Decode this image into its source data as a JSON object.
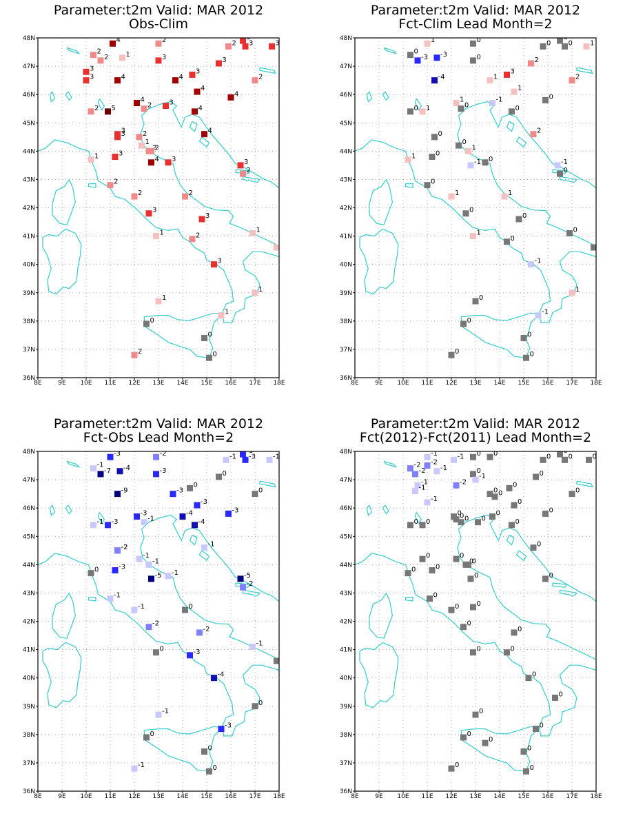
{
  "figure": {
    "panels": [
      {
        "title_line1": "Parameter:t2m Valid: MAR 2012",
        "title_line2": "Obs-Clim",
        "stations": [
          [
            11.1,
            47.8,
            4
          ],
          [
            13.0,
            47.8,
            2
          ],
          [
            15.9,
            47.7,
            2
          ],
          [
            16.5,
            47.9,
            3
          ],
          [
            16.6,
            47.7,
            3
          ],
          [
            17.7,
            47.7,
            3
          ],
          [
            10.3,
            47.4,
            2
          ],
          [
            10.6,
            47.2,
            2
          ],
          [
            11.5,
            47.3,
            1
          ],
          [
            13.0,
            47.2,
            3
          ],
          [
            15.5,
            47.1,
            3
          ],
          [
            10.0,
            46.8,
            3
          ],
          [
            10.0,
            46.5,
            3
          ],
          [
            11.3,
            46.5,
            4
          ],
          [
            13.7,
            46.5,
            4
          ],
          [
            14.4,
            46.7,
            3
          ],
          [
            14.6,
            46.1,
            4
          ],
          [
            17.0,
            46.5,
            2
          ],
          [
            16.0,
            45.9,
            4
          ],
          [
            12.1,
            45.7,
            4
          ],
          [
            12.4,
            45.5,
            2
          ],
          [
            13.3,
            45.6,
            3
          ],
          [
            14.5,
            45.4,
            4
          ],
          [
            10.2,
            45.4,
            2
          ],
          [
            10.9,
            45.4,
            5
          ],
          [
            11.3,
            44.5,
            3
          ],
          [
            11.3,
            44.6,
            3
          ],
          [
            12.2,
            44.5,
            2
          ],
          [
            12.3,
            44.2,
            1
          ],
          [
            12.6,
            44.0,
            2
          ],
          [
            12.7,
            44.0,
            2
          ],
          [
            14.9,
            44.6,
            4
          ],
          [
            10.2,
            43.7,
            1
          ],
          [
            11.2,
            43.8,
            3
          ],
          [
            12.7,
            43.6,
            4
          ],
          [
            13.4,
            43.6,
            3
          ],
          [
            16.4,
            43.5,
            3
          ],
          [
            16.5,
            43.2,
            2
          ],
          [
            11.0,
            42.8,
            2
          ],
          [
            12.0,
            42.4,
            2
          ],
          [
            14.1,
            42.4,
            2
          ],
          [
            12.6,
            41.8,
            3
          ],
          [
            14.8,
            41.6,
            3
          ],
          [
            12.9,
            41.0,
            1
          ],
          [
            14.4,
            40.9,
            2
          ],
          [
            16.9,
            41.1,
            1
          ],
          [
            17.9,
            40.6,
            1
          ],
          [
            15.3,
            40.0,
            3
          ],
          [
            17.0,
            39.0,
            1
          ],
          [
            13.0,
            38.7,
            1
          ],
          [
            15.6,
            38.2,
            1
          ],
          [
            12.5,
            37.9,
            0
          ],
          [
            14.9,
            37.4,
            0
          ],
          [
            15.1,
            36.7,
            0
          ],
          [
            12.0,
            36.8,
            2
          ]
        ]
      },
      {
        "title_line1": "Parameter:t2m Valid: MAR 2012",
        "title_line2": "Fct-Clim Lead Month=2",
        "stations": [
          [
            11.0,
            47.8,
            1
          ],
          [
            12.9,
            47.8,
            0
          ],
          [
            16.5,
            47.9,
            0
          ],
          [
            16.7,
            47.7,
            0
          ],
          [
            15.8,
            47.7,
            0
          ],
          [
            17.6,
            47.7,
            1
          ],
          [
            10.3,
            47.4,
            0
          ],
          [
            10.6,
            47.2,
            -3
          ],
          [
            11.4,
            47.3,
            -3
          ],
          [
            12.9,
            47.2,
            0
          ],
          [
            15.3,
            47.1,
            2
          ],
          [
            11.3,
            46.5,
            -4
          ],
          [
            13.6,
            46.5,
            1
          ],
          [
            14.3,
            46.7,
            3
          ],
          [
            14.6,
            46.1,
            1
          ],
          [
            17.0,
            46.5,
            2
          ],
          [
            15.9,
            45.8,
            0
          ],
          [
            10.3,
            45.4,
            0
          ],
          [
            10.8,
            45.4,
            1
          ],
          [
            12.2,
            45.7,
            1
          ],
          [
            12.4,
            45.5,
            0
          ],
          [
            13.7,
            45.7,
            -1
          ],
          [
            14.5,
            45.4,
            0
          ],
          [
            15.4,
            44.6,
            2
          ],
          [
            11.3,
            44.5,
            0
          ],
          [
            12.3,
            44.2,
            0
          ],
          [
            12.7,
            44.0,
            1
          ],
          [
            11.2,
            43.8,
            0
          ],
          [
            10.2,
            43.7,
            1
          ],
          [
            12.8,
            43.5,
            -1
          ],
          [
            13.4,
            43.6,
            0
          ],
          [
            16.4,
            43.5,
            -1
          ],
          [
            16.5,
            43.2,
            0
          ],
          [
            11.0,
            42.8,
            0
          ],
          [
            12.0,
            42.4,
            1
          ],
          [
            14.2,
            42.4,
            1
          ],
          [
            12.6,
            41.8,
            0
          ],
          [
            14.8,
            41.6,
            0
          ],
          [
            12.9,
            41.0,
            1
          ],
          [
            14.3,
            40.8,
            0
          ],
          [
            16.9,
            41.1,
            0
          ],
          [
            17.9,
            40.6,
            0
          ],
          [
            15.3,
            40.0,
            -1
          ],
          [
            17.0,
            39.0,
            1
          ],
          [
            13.0,
            38.7,
            0
          ],
          [
            15.6,
            38.2,
            -1
          ],
          [
            12.5,
            37.9,
            0
          ],
          [
            15.0,
            37.4,
            0
          ],
          [
            15.1,
            36.7,
            0
          ],
          [
            12.0,
            36.8,
            0
          ]
        ]
      },
      {
        "title_line1": "Parameter:t2m Valid: MAR 2012",
        "title_line2": "Fct-Obs Lead Month=2",
        "stations": [
          [
            11.0,
            47.8,
            -3
          ],
          [
            12.9,
            47.8,
            -2
          ],
          [
            15.8,
            47.7,
            -1
          ],
          [
            16.5,
            47.9,
            -3
          ],
          [
            16.6,
            47.7,
            -3
          ],
          [
            17.6,
            47.7,
            -1
          ],
          [
            10.3,
            47.4,
            -1
          ],
          [
            10.6,
            47.2,
            -7
          ],
          [
            11.4,
            47.3,
            -4
          ],
          [
            12.9,
            47.2,
            -3
          ],
          [
            15.5,
            47.1,
            0
          ],
          [
            11.3,
            46.5,
            -9
          ],
          [
            13.6,
            46.5,
            -3
          ],
          [
            14.3,
            46.7,
            0
          ],
          [
            14.6,
            46.1,
            -3
          ],
          [
            17.0,
            46.5,
            0
          ],
          [
            15.9,
            45.8,
            -3
          ],
          [
            10.3,
            45.4,
            -1
          ],
          [
            10.9,
            45.4,
            -3
          ],
          [
            12.1,
            45.7,
            -3
          ],
          [
            12.4,
            45.5,
            -1
          ],
          [
            14.0,
            45.7,
            -4
          ],
          [
            14.5,
            45.4,
            -4
          ],
          [
            14.9,
            44.6,
            -1
          ],
          [
            11.3,
            44.5,
            -2
          ],
          [
            11.3,
            44.5,
            -2
          ],
          [
            12.2,
            44.2,
            -1
          ],
          [
            12.6,
            44.0,
            -1
          ],
          [
            11.2,
            43.8,
            -3
          ],
          [
            12.7,
            43.5,
            -5
          ],
          [
            13.4,
            43.6,
            -1
          ],
          [
            10.2,
            43.7,
            0
          ],
          [
            16.4,
            43.5,
            -5
          ],
          [
            16.5,
            43.2,
            -2
          ],
          [
            11.0,
            42.8,
            -1
          ],
          [
            12.0,
            42.4,
            -1
          ],
          [
            14.1,
            42.4,
            0
          ],
          [
            12.6,
            41.8,
            -2
          ],
          [
            14.7,
            41.6,
            -2
          ],
          [
            12.9,
            40.9,
            0
          ],
          [
            14.3,
            40.8,
            -3
          ],
          [
            16.9,
            41.1,
            -1
          ],
          [
            17.9,
            40.6,
            0
          ],
          [
            15.3,
            40.0,
            -4
          ],
          [
            17.0,
            39.0,
            0
          ],
          [
            13.0,
            38.7,
            -1
          ],
          [
            15.6,
            38.2,
            -3
          ],
          [
            12.5,
            37.9,
            0
          ],
          [
            14.9,
            37.4,
            0
          ],
          [
            15.1,
            36.7,
            0
          ],
          [
            12.0,
            36.8,
            -1
          ]
        ]
      },
      {
        "title_line1": "Parameter:t2m Valid: MAR 2012",
        "title_line2": "Fct(2012)-Fct(2011) Lead Month=2",
        "stations": [
          [
            11.0,
            47.8,
            -1
          ],
          [
            12.1,
            47.7,
            -1
          ],
          [
            12.9,
            47.8,
            0
          ],
          [
            13.6,
            47.8,
            0
          ],
          [
            15.8,
            47.7,
            0
          ],
          [
            16.5,
            47.9,
            0
          ],
          [
            16.7,
            47.7,
            0
          ],
          [
            17.7,
            47.7,
            0
          ],
          [
            10.3,
            47.4,
            -2
          ],
          [
            10.5,
            47.2,
            -2
          ],
          [
            11.0,
            47.5,
            -2
          ],
          [
            11.4,
            47.3,
            -1
          ],
          [
            12.9,
            47.2,
            0
          ],
          [
            13.0,
            47.0,
            -1
          ],
          [
            15.5,
            47.1,
            0
          ],
          [
            10.6,
            46.8,
            -1
          ],
          [
            10.5,
            46.6,
            -1
          ],
          [
            11.0,
            46.2,
            -1
          ],
          [
            12.2,
            46.8,
            -2
          ],
          [
            13.6,
            46.5,
            0
          ],
          [
            13.8,
            46.4,
            0
          ],
          [
            14.4,
            46.7,
            0
          ],
          [
            14.6,
            46.1,
            0
          ],
          [
            17.0,
            46.5,
            0
          ],
          [
            15.9,
            45.8,
            0
          ],
          [
            10.3,
            45.4,
            0
          ],
          [
            10.8,
            45.4,
            0
          ],
          [
            12.1,
            45.7,
            0
          ],
          [
            12.2,
            45.6,
            0
          ],
          [
            12.4,
            45.5,
            0
          ],
          [
            13.1,
            45.5,
            0
          ],
          [
            13.7,
            45.7,
            0
          ],
          [
            14.5,
            45.4,
            0
          ],
          [
            15.4,
            44.6,
            0
          ],
          [
            10.8,
            44.2,
            0
          ],
          [
            11.2,
            43.8,
            0
          ],
          [
            12.2,
            44.2,
            0
          ],
          [
            12.6,
            44.0,
            0
          ],
          [
            12.7,
            44.0,
            0
          ],
          [
            10.2,
            43.7,
            0
          ],
          [
            12.8,
            43.5,
            0
          ],
          [
            15.9,
            43.5,
            0
          ],
          [
            11.1,
            42.8,
            0
          ],
          [
            12.0,
            42.4,
            0
          ],
          [
            12.9,
            42.5,
            0
          ],
          [
            12.5,
            41.8,
            0
          ],
          [
            14.6,
            41.6,
            0
          ],
          [
            12.9,
            40.9,
            0
          ],
          [
            14.3,
            40.9,
            0
          ],
          [
            15.2,
            40.0,
            0
          ],
          [
            16.3,
            39.3,
            0
          ],
          [
            13.0,
            38.7,
            0
          ],
          [
            15.5,
            38.2,
            0
          ],
          [
            12.5,
            37.9,
            0
          ],
          [
            13.4,
            37.7,
            0
          ],
          [
            15.0,
            37.4,
            0
          ],
          [
            15.1,
            36.7,
            0
          ],
          [
            12.0,
            36.8,
            0
          ]
        ]
      }
    ],
    "lat_labels": [
      "36N",
      "37N",
      "38N",
      "39N",
      "40N",
      "41N",
      "42N",
      "43N",
      "44N",
      "45N",
      "46N",
      "47N",
      "48N"
    ],
    "lon_labels": [
      "8E",
      "9E",
      "10E",
      "11E",
      "12E",
      "13E",
      "14E",
      "15E",
      "16E",
      "17E",
      "18E"
    ],
    "colors": {
      "coast": "#33cccc",
      "grid": "#999999",
      "zero": "#777777",
      "pos": [
        "#f7c0c0",
        "#f08a8a",
        "#e83030",
        "#a00000",
        "#700000"
      ],
      "neg": [
        "#c8c8ff",
        "#8080ff",
        "#2828ff",
        "#1010b0",
        "#000080"
      ]
    }
  }
}
